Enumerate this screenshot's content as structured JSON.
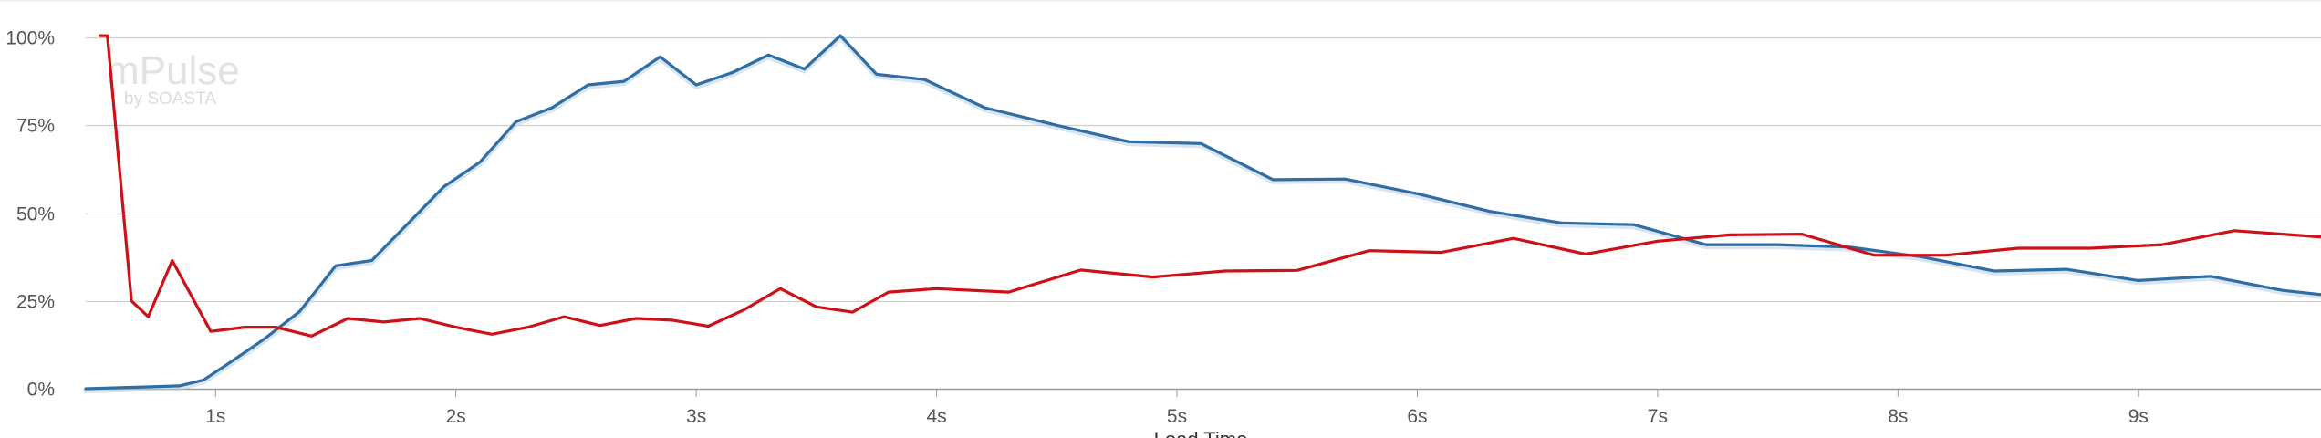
{
  "watermark": {
    "brand": "mPulse",
    "byline": "by SOASTA"
  },
  "colors": {
    "series_blue": "#2f6ea5",
    "series_red": "#cc1119",
    "grid": "#cfcfcf",
    "axis": "#999999"
  },
  "chart_data": {
    "type": "line",
    "title": "",
    "xlabel": "Load Time",
    "ylabel": "",
    "x_unit": "s",
    "xlim": [
      0.46,
      9.76
    ],
    "ylim": [
      0,
      100
    ],
    "x_ticks": [
      1,
      2,
      3,
      4,
      5,
      6,
      7,
      8,
      9
    ],
    "x_tick_labels": [
      "1s",
      "2s",
      "3s",
      "4s",
      "5s",
      "6s",
      "7s",
      "8s",
      "9s"
    ],
    "y_ticks": [
      0,
      25,
      50,
      75,
      100
    ],
    "y_tick_labels": [
      "0%",
      "25%",
      "50%",
      "75%",
      "100%"
    ],
    "grid": true,
    "legend": "none",
    "series": [
      {
        "color": "#2f6ea5",
        "points": [
          [
            0.46,
            0.0
          ],
          [
            0.7,
            0.5
          ],
          [
            0.85,
            0.8
          ],
          [
            0.95,
            2.5
          ],
          [
            1.05,
            7
          ],
          [
            1.2,
            14
          ],
          [
            1.35,
            22
          ],
          [
            1.5,
            35
          ],
          [
            1.65,
            36.5
          ],
          [
            1.8,
            47
          ],
          [
            1.95,
            57.5
          ],
          [
            2.1,
            64.5
          ],
          [
            2.25,
            76
          ],
          [
            2.4,
            80
          ],
          [
            2.55,
            86.5
          ],
          [
            2.7,
            87.5
          ],
          [
            2.85,
            94.5
          ],
          [
            3.0,
            86.5
          ],
          [
            3.15,
            90
          ],
          [
            3.3,
            95
          ],
          [
            3.45,
            91
          ],
          [
            3.6,
            100.5
          ],
          [
            3.75,
            89.5
          ],
          [
            3.95,
            88
          ],
          [
            4.2,
            80
          ],
          [
            4.5,
            75
          ],
          [
            4.8,
            70.3
          ],
          [
            5.1,
            69.8
          ],
          [
            5.4,
            59.5
          ],
          [
            5.7,
            59.7
          ],
          [
            6.0,
            55.5
          ],
          [
            6.3,
            50.5
          ],
          [
            6.6,
            47.2
          ],
          [
            6.9,
            46.7
          ],
          [
            7.2,
            41
          ],
          [
            7.5,
            41
          ],
          [
            7.8,
            40.3
          ],
          [
            8.1,
            37.5
          ],
          [
            8.4,
            33.5
          ],
          [
            8.7,
            34
          ],
          [
            9.0,
            30.8
          ],
          [
            9.3,
            32
          ],
          [
            9.6,
            28
          ],
          [
            9.76,
            26.8
          ]
        ]
      },
      {
        "color": "#cc1119",
        "points": [
          [
            0.52,
            100.5
          ],
          [
            0.55,
            100.5
          ],
          [
            0.65,
            25
          ],
          [
            0.72,
            20.5
          ],
          [
            0.82,
            36.5
          ],
          [
            0.98,
            16.3
          ],
          [
            1.12,
            17.5
          ],
          [
            1.25,
            17.5
          ],
          [
            1.4,
            15
          ],
          [
            1.55,
            20
          ],
          [
            1.7,
            19
          ],
          [
            1.85,
            20
          ],
          [
            2.0,
            17.5
          ],
          [
            2.15,
            15.5
          ],
          [
            2.3,
            17.5
          ],
          [
            2.45,
            20.5
          ],
          [
            2.6,
            18
          ],
          [
            2.75,
            20
          ],
          [
            2.9,
            19.5
          ],
          [
            3.05,
            17.8
          ],
          [
            3.2,
            22.5
          ],
          [
            3.35,
            28.5
          ],
          [
            3.5,
            23.3
          ],
          [
            3.65,
            21.8
          ],
          [
            3.8,
            27.5
          ],
          [
            4.0,
            28.5
          ],
          [
            4.3,
            27.5
          ],
          [
            4.6,
            33.8
          ],
          [
            4.9,
            31.8
          ],
          [
            5.2,
            33.5
          ],
          [
            5.5,
            33.7
          ],
          [
            5.8,
            39.3
          ],
          [
            6.1,
            38.8
          ],
          [
            6.4,
            42.8
          ],
          [
            6.7,
            38.3
          ],
          [
            7.0,
            42
          ],
          [
            7.3,
            43.8
          ],
          [
            7.6,
            44
          ],
          [
            7.9,
            38
          ],
          [
            8.2,
            38
          ],
          [
            8.5,
            40
          ],
          [
            8.8,
            40
          ],
          [
            9.1,
            41
          ],
          [
            9.4,
            45
          ],
          [
            9.76,
            43.2
          ]
        ]
      }
    ]
  }
}
